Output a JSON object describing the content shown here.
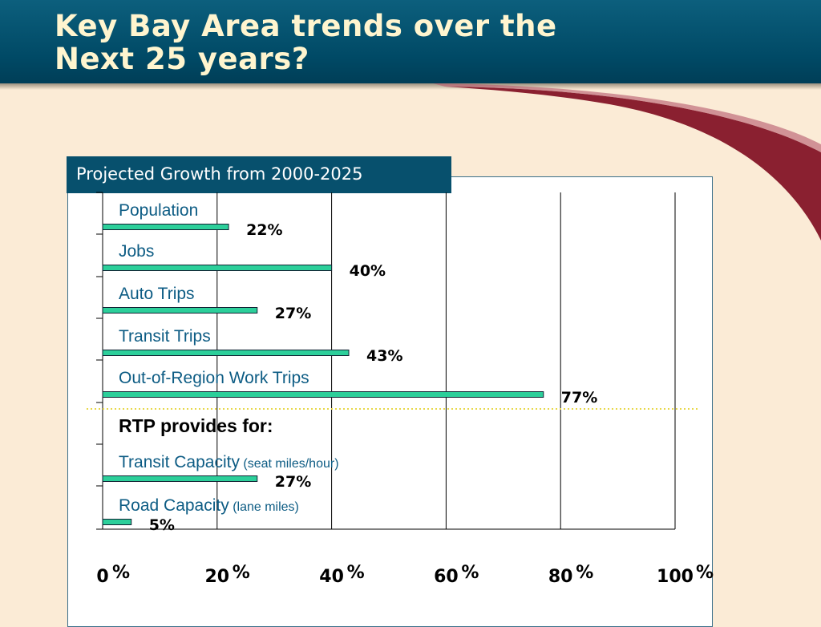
{
  "slide": {
    "title_line1": "Key Bay Area trends over the",
    "title_line2": "Next 25 years?"
  },
  "colors": {
    "header": "#004965",
    "background": "#fbebd6",
    "swoosh": "#8a2030",
    "bar_fill": "#2ccf9a",
    "label_text": "#0d5c84",
    "separator": "#e8d84a"
  },
  "chart_data": {
    "type": "bar",
    "orientation": "horizontal",
    "title": "Projected Growth from 2000-2025",
    "categories": [
      "Population",
      "Jobs",
      "Auto Trips",
      "Transit Trips",
      "Out-of-Region Work Trips",
      "Transit Capacity",
      "Road Capacity"
    ],
    "category_notes": [
      "",
      "",
      "",
      "",
      "",
      "(seat miles/hour)",
      "(lane miles)"
    ],
    "values": [
      22,
      40,
      27,
      43,
      77,
      27,
      5
    ],
    "value_labels": [
      "22%",
      "40%",
      "27%",
      "43%",
      "77%",
      "27%",
      "5%"
    ],
    "section_label": "RTP provides for:",
    "xlim": [
      0,
      100
    ],
    "x_ticks": [
      0,
      20,
      40,
      60,
      80,
      100
    ],
    "x_tick_suffix": "%",
    "grid": true,
    "legend": "none"
  }
}
